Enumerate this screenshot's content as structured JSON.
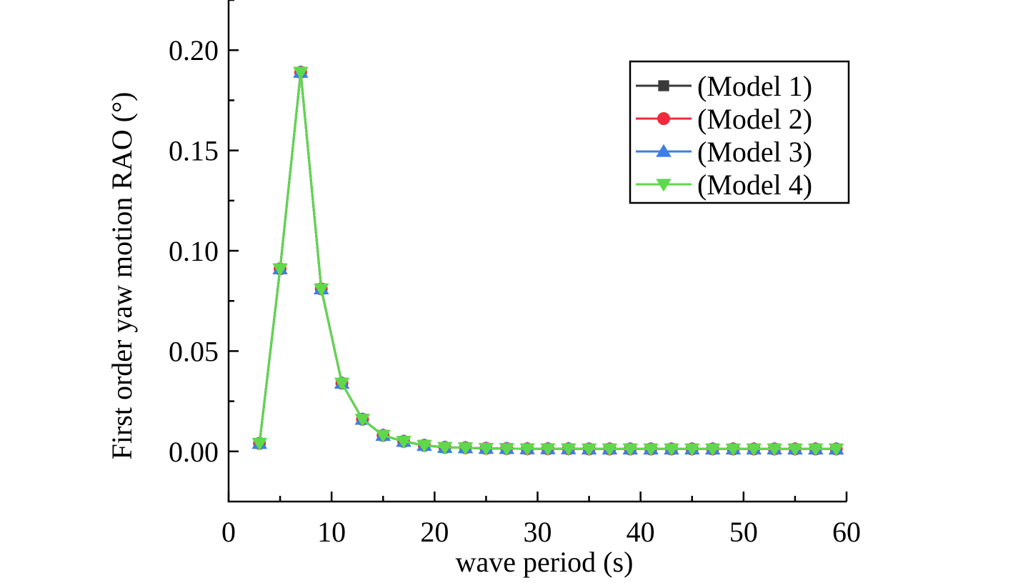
{
  "chart_data": {
    "type": "line",
    "title": "",
    "xlabel": "wave period (s)",
    "ylabel": "First order yaw motion RAO (°)",
    "xlim": [
      0,
      60
    ],
    "ylim": [
      -0.025,
      0.225
    ],
    "xticks": [
      0,
      10,
      20,
      30,
      40,
      50,
      60
    ],
    "xtick_labels": [
      "0",
      "10",
      "20",
      "30",
      "40",
      "50",
      "60"
    ],
    "yticks": [
      0.0,
      0.05,
      0.1,
      0.15,
      0.2
    ],
    "ytick_labels": [
      "0.00",
      "0.05",
      "0.10",
      "0.15",
      "0.20"
    ],
    "grid": false,
    "legend_position": "top-right",
    "x": [
      3,
      5,
      7,
      9,
      11,
      13,
      15,
      17,
      19,
      21,
      23,
      25,
      27,
      29,
      31,
      33,
      35,
      37,
      39,
      41,
      43,
      45,
      47,
      49,
      51,
      53,
      55,
      57,
      59
    ],
    "series": [
      {
        "name": "(Model 1)",
        "color": "#3a3a3a",
        "marker": "square",
        "values": [
          0.004,
          0.091,
          0.189,
          0.081,
          0.034,
          0.016,
          0.008,
          0.005,
          0.003,
          0.002,
          0.0018,
          0.0015,
          0.0014,
          0.0013,
          0.0013,
          0.0013,
          0.0012,
          0.0012,
          0.0012,
          0.0012,
          0.0012,
          0.0012,
          0.0012,
          0.0012,
          0.0012,
          0.0012,
          0.0012,
          0.0012,
          0.0012
        ]
      },
      {
        "name": "(Model 2)",
        "color": "#ee2b3b",
        "marker": "circle",
        "values": [
          0.004,
          0.091,
          0.189,
          0.081,
          0.034,
          0.016,
          0.008,
          0.005,
          0.003,
          0.002,
          0.0018,
          0.0015,
          0.0014,
          0.0013,
          0.0013,
          0.0013,
          0.0012,
          0.0012,
          0.0012,
          0.0012,
          0.0012,
          0.0012,
          0.0012,
          0.0012,
          0.0012,
          0.0012,
          0.0012,
          0.0012,
          0.0012
        ]
      },
      {
        "name": "(Model 3)",
        "color": "#3d7fe0",
        "marker": "triangle-up",
        "values": [
          0.004,
          0.091,
          0.189,
          0.081,
          0.034,
          0.016,
          0.008,
          0.005,
          0.003,
          0.002,
          0.0018,
          0.0015,
          0.0014,
          0.0013,
          0.0013,
          0.0013,
          0.0012,
          0.0012,
          0.0012,
          0.0012,
          0.0012,
          0.0012,
          0.0012,
          0.0012,
          0.0012,
          0.0012,
          0.0012,
          0.0012,
          0.0012
        ]
      },
      {
        "name": "(Model 4)",
        "color": "#5fd94a",
        "marker": "triangle-down",
        "values": [
          0.004,
          0.091,
          0.189,
          0.081,
          0.034,
          0.016,
          0.008,
          0.005,
          0.003,
          0.002,
          0.0018,
          0.0015,
          0.0014,
          0.0013,
          0.0013,
          0.0013,
          0.0012,
          0.0012,
          0.0012,
          0.0012,
          0.0012,
          0.0012,
          0.0012,
          0.0012,
          0.0012,
          0.0012,
          0.0012,
          0.0012,
          0.0012
        ]
      }
    ]
  }
}
